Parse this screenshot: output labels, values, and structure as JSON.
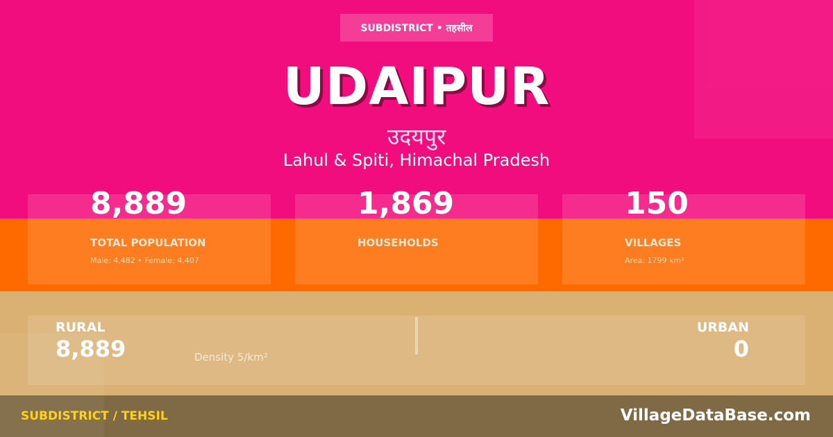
{
  "badge": "SUBDISTRICT • तहसील",
  "title": "UDAIPUR",
  "title_hindi": "उदयपुर",
  "location": "Lahul & Spiti, Himachal Pradesh",
  "stats": [
    {
      "value": "8,889",
      "label": "TOTAL POPULATION",
      "sub": "Male: 4,482 • Female: 4,407"
    },
    {
      "value": "1,869",
      "label": "HOUSEHOLDS",
      "sub": ""
    },
    {
      "value": "150",
      "label": "VILLAGES",
      "sub": "Area: 1799 km²"
    }
  ],
  "rural": {
    "label": "RURAL",
    "value": "8,889",
    "density": "Density 5/km²"
  },
  "urban": {
    "label": "URBAN",
    "value": "0"
  },
  "footer": {
    "left": "SUBDISTRICT / TEHSIL",
    "right": "VillageDataBase.com"
  },
  "colors": {
    "pink": "#f20d7e",
    "orange": "#ff6a00",
    "tan": "#dab073",
    "footer": "#806a45",
    "accent": "#ffd21a"
  }
}
